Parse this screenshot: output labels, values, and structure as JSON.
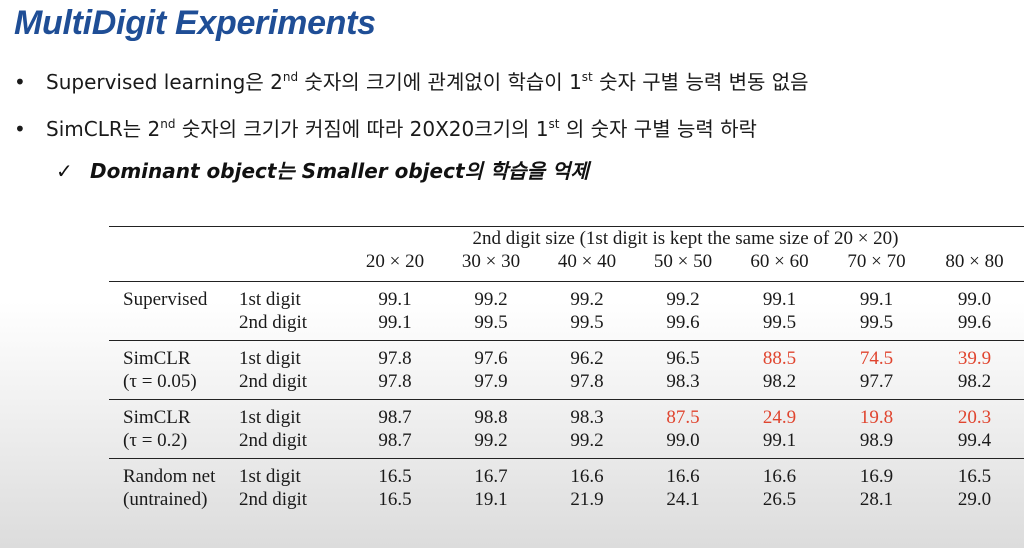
{
  "slide": {
    "title": "MultiDigit Experiments",
    "bullets": [
      {
        "pre": "Supervised learning은 2",
        "sup1": "nd",
        "mid": " 숫자의 크기에 관계없이 학습이 1",
        "sup2": "st",
        "post": " 숫자 구별 능력 변동 없음"
      },
      {
        "pre": "SimCLR는 2",
        "sup1": "nd",
        "mid": " 숫자의 크기가 커짐에 따라 20X20크기의 1",
        "sup2": "st",
        "post": " 의 숫자 구별 능력 하락"
      }
    ],
    "bullet_symbol": "•",
    "check_symbol": "✓",
    "subpoint": "Dominant object는 Smaller object의 학습을 억제"
  },
  "table": {
    "header_span": "2nd digit size (1st digit is kept the same size of 20 × 20)",
    "columns": [
      "20 × 20",
      "30 × 30",
      "40 × 40",
      "50 × 50",
      "60 × 60",
      "70 × 70",
      "80 × 80"
    ],
    "highlight_color": "#e0452f",
    "groups": [
      {
        "label1": "Supervised",
        "label2": "",
        "rows": [
          {
            "digit": "1st digit",
            "values": [
              "99.1",
              "99.2",
              "99.2",
              "99.2",
              "99.1",
              "99.1",
              "99.0"
            ],
            "red": [
              false,
              false,
              false,
              false,
              false,
              false,
              false
            ]
          },
          {
            "digit": "2nd digit",
            "values": [
              "99.1",
              "99.5",
              "99.5",
              "99.6",
              "99.5",
              "99.5",
              "99.6"
            ],
            "red": [
              false,
              false,
              false,
              false,
              false,
              false,
              false
            ]
          }
        ]
      },
      {
        "label1": "SimCLR",
        "label2": "(τ = 0.05)",
        "rows": [
          {
            "digit": "1st digit",
            "values": [
              "97.8",
              "97.6",
              "96.2",
              "96.5",
              "88.5",
              "74.5",
              "39.9"
            ],
            "red": [
              false,
              false,
              false,
              false,
              true,
              true,
              true
            ]
          },
          {
            "digit": "2nd digit",
            "values": [
              "97.8",
              "97.9",
              "97.8",
              "98.3",
              "98.2",
              "97.7",
              "98.2"
            ],
            "red": [
              false,
              false,
              false,
              false,
              false,
              false,
              false
            ]
          }
        ]
      },
      {
        "label1": "SimCLR",
        "label2": "(τ = 0.2)",
        "rows": [
          {
            "digit": "1st digit",
            "values": [
              "98.7",
              "98.8",
              "98.3",
              "87.5",
              "24.9",
              "19.8",
              "20.3"
            ],
            "red": [
              false,
              false,
              false,
              true,
              true,
              true,
              true
            ]
          },
          {
            "digit": "2nd digit",
            "values": [
              "98.7",
              "99.2",
              "99.2",
              "99.0",
              "99.1",
              "98.9",
              "99.4"
            ],
            "red": [
              false,
              false,
              false,
              false,
              false,
              false,
              false
            ]
          }
        ]
      },
      {
        "label1": "Random net",
        "label2": "(untrained)",
        "rows": [
          {
            "digit": "1st digit",
            "values": [
              "16.5",
              "16.7",
              "16.6",
              "16.6",
              "16.6",
              "16.9",
              "16.5"
            ],
            "red": [
              false,
              false,
              false,
              false,
              false,
              false,
              false
            ]
          },
          {
            "digit": "2nd digit",
            "values": [
              "16.5",
              "19.1",
              "21.9",
              "24.1",
              "26.5",
              "28.1",
              "29.0"
            ],
            "red": [
              false,
              false,
              false,
              false,
              false,
              false,
              false
            ]
          }
        ]
      }
    ]
  }
}
